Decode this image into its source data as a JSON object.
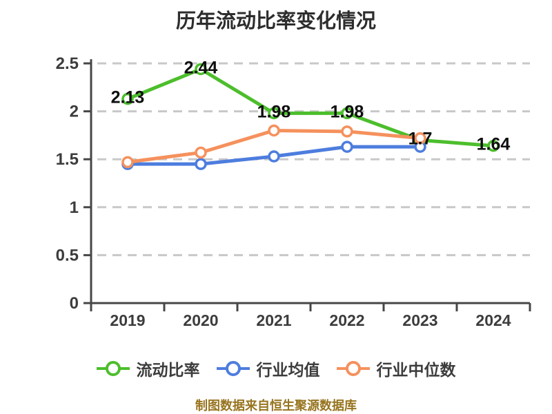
{
  "title": "历年流动比率变化情况",
  "footer": "制图数据来自恒生聚源数据库",
  "colors": {
    "background": "#ffffff",
    "axis": "#464646",
    "grid": "#c8c8c8",
    "tick_label": "#3c3c3c",
    "data_label": "#0f0f0f",
    "title": "#2d2d2d",
    "legend_label": "#3c3c3c",
    "footer": "#97741f",
    "marker_fill": "#ffffff",
    "series_green": "#4cbe2c",
    "series_blue": "#4d7dde",
    "series_orange": "#f5915d"
  },
  "chart_data": {
    "type": "line",
    "title": "历年流动比率变化情况",
    "categories": [
      "2019",
      "2020",
      "2021",
      "2022",
      "2023",
      "2024"
    ],
    "series": [
      {
        "name": "流动比率",
        "color": "#4cbe2c",
        "values": [
          2.13,
          2.44,
          1.98,
          1.98,
          1.7,
          1.64
        ],
        "labels": [
          "2.13",
          "2.44",
          "1.98",
          "1.98",
          "1.7",
          "1.64"
        ]
      },
      {
        "name": "行业均值",
        "color": "#4d7dde",
        "values": [
          1.45,
          1.45,
          1.53,
          1.63,
          1.63,
          null
        ],
        "labels": null
      },
      {
        "name": "行业中位数",
        "color": "#f5915d",
        "values": [
          1.47,
          1.57,
          1.8,
          1.79,
          1.72,
          null
        ],
        "labels": null
      }
    ],
    "xlabel": "",
    "ylabel": "",
    "ylim": [
      0,
      2.5
    ],
    "y_ticks": [
      0,
      0.5,
      1,
      1.5,
      2,
      2.5
    ],
    "y_tick_labels": [
      "0",
      "0.5",
      "1",
      "1.5",
      "2",
      "2.5"
    ],
    "grid": true,
    "grid_style": "dashed",
    "legend_position": "bottom",
    "source_note": "制图数据来自恒生聚源数据库"
  }
}
